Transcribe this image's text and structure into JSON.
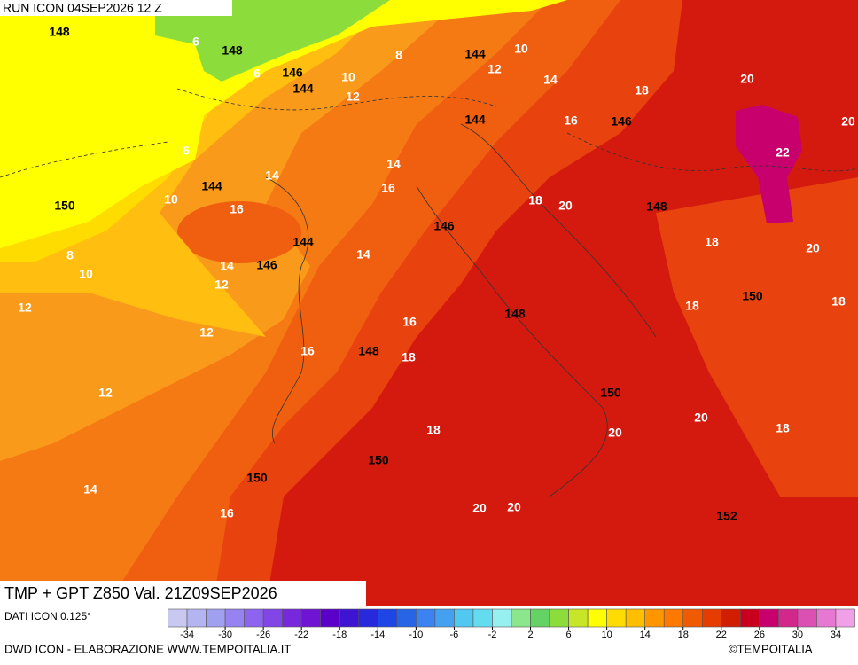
{
  "header": {
    "run": "RUN ICON 04SEP2026 12 Z"
  },
  "map": {
    "geopotential_labels": [
      148,
      148,
      146,
      144,
      144,
      146,
      144,
      144,
      148,
      150,
      146,
      144,
      146,
      150,
      148,
      148,
      150,
      150,
      150,
      152
    ],
    "temperature_labels": [
      6,
      6,
      10,
      12,
      8,
      10,
      12,
      14,
      18,
      20,
      20,
      16,
      22,
      6,
      14,
      14,
      16,
      18,
      20,
      10,
      16,
      18,
      20,
      8,
      14,
      14,
      10,
      12,
      18,
      18,
      12,
      16,
      12,
      16,
      18,
      12,
      20,
      18,
      20,
      18,
      14,
      20,
      20,
      16
    ]
  },
  "footer": {
    "title": "TMP + GPT Z850 Val. 21Z09SEP2026",
    "source": "DATI ICON 0.125°",
    "credit": "DWD ICON - ELABORAZIONE WWW.TEMPOITALIA.IT",
    "brand": "©TEMPOITALIA"
  },
  "colorbar": {
    "lim": [
      -36,
      36
    ],
    "colors": [
      "#c8c8f0",
      "#b4b4f0",
      "#a0a0f0",
      "#9682f0",
      "#8c64f0",
      "#8246e6",
      "#7828dc",
      "#6e14d2",
      "#5a00c8",
      "#3c14d2",
      "#2828dc",
      "#1e46e6",
      "#2864e6",
      "#3c82f0",
      "#46a0f0",
      "#50c8f0",
      "#64dcf0",
      "#96f0f0",
      "#8ce68c",
      "#64d264",
      "#8cdc3c",
      "#c8e628",
      "#ffff00",
      "#ffdc00",
      "#ffbe00",
      "#ff9600",
      "#ff7800",
      "#f05a00",
      "#e63c00",
      "#d21e00",
      "#c8001e",
      "#c8006e",
      "#d2288c",
      "#dc50b4",
      "#e678d2",
      "#f0a0e6"
    ],
    "ticks": [
      -34,
      -30,
      -26,
      -22,
      -18,
      -14,
      -10,
      -6,
      -2,
      2,
      6,
      10,
      14,
      18,
      22,
      26,
      30,
      34
    ]
  }
}
